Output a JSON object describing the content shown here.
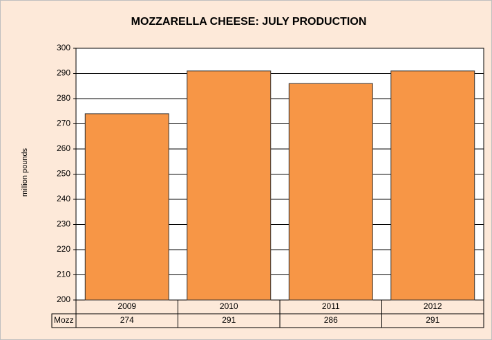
{
  "chart_data": {
    "type": "bar",
    "title": "MOZZARELLA CHEESE: JULY PRODUCTION",
    "y_label": "million pounds",
    "categories": [
      "2009",
      "2010",
      "2011",
      "2012"
    ],
    "series": [
      {
        "name": "Mozz",
        "color": "#f79646",
        "values": [
          274,
          291,
          286,
          291
        ]
      }
    ],
    "ylim": [
      200,
      300
    ],
    "yticks": [
      200,
      210,
      220,
      230,
      240,
      250,
      260,
      270,
      280,
      290,
      300
    ],
    "grid": true
  }
}
